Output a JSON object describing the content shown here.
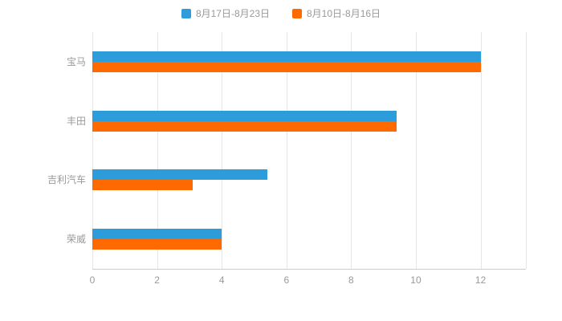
{
  "chart_data": {
    "type": "bar",
    "orientation": "horizontal",
    "title": "",
    "xlabel": "",
    "ylabel": "",
    "categories": [
      "宝马",
      "丰田",
      "吉利汽车",
      "荣威"
    ],
    "series": [
      {
        "name": "8月17日-8月23日",
        "color": "#2D9CDB",
        "values": [
          12,
          9.4,
          5.4,
          4
        ]
      },
      {
        "name": "8月10日-8月16日",
        "color": "#FF6A00",
        "values": [
          12,
          9.4,
          3.1,
          4
        ]
      }
    ],
    "xlim": [
      0,
      13.4
    ],
    "xticks": [
      0,
      2,
      4,
      6,
      8,
      10,
      12
    ],
    "grid": true,
    "legend_position": "top"
  },
  "colors": {
    "gridline": "#e6e6e6",
    "axis": "#cccccc",
    "text": "#999999",
    "background": "#ffffff"
  }
}
